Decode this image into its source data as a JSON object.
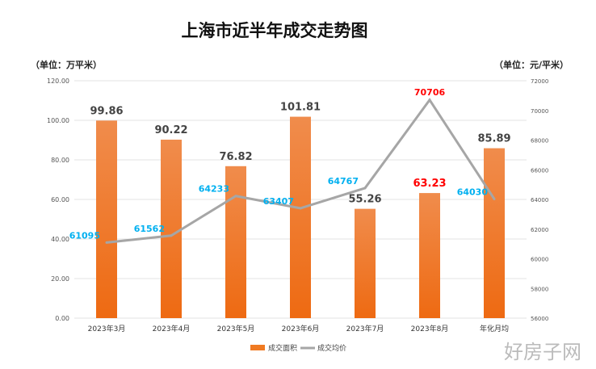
{
  "chart_data": {
    "type": "bar+line",
    "title": "上海市近半年成交走势图",
    "left_unit": "（单位：万平米）",
    "right_unit": "（单位：元/平米）",
    "categories": [
      "2023年3月",
      "2023年4月",
      "2023年5月",
      "2023年6月",
      "2023年7月",
      "2023年8月",
      "年化月均"
    ],
    "series": [
      {
        "name": "成交面积",
        "type": "bar",
        "axis": "left",
        "values": [
          99.86,
          90.22,
          76.82,
          101.81,
          55.26,
          63.23,
          85.89
        ],
        "color": "#f07a22",
        "label_colors": [
          "#444",
          "#444",
          "#444",
          "#444",
          "#444",
          "#ff0000",
          "#444"
        ]
      },
      {
        "name": "成交均价",
        "type": "line",
        "axis": "right",
        "values": [
          61095,
          61562,
          64233,
          63407,
          64767,
          70706,
          64030
        ],
        "color": "#a6a6a6",
        "label_colors": [
          "#00b0f0",
          "#00b0f0",
          "#00b0f0",
          "#00b0f0",
          "#00b0f0",
          "#ff0000",
          "#00b0f0"
        ]
      }
    ],
    "left_ylim": [
      0,
      120
    ],
    "left_ticks": [
      "0.00",
      "20.00",
      "40.00",
      "60.00",
      "80.00",
      "100.00",
      "120.00"
    ],
    "right_ylim": [
      56000,
      72000
    ],
    "right_ticks": [
      "56000",
      "58000",
      "60000",
      "62000",
      "64000",
      "66000",
      "68000",
      "70000",
      "72000"
    ],
    "grid": true,
    "legend": "bottom"
  },
  "watermark": "好房子网"
}
